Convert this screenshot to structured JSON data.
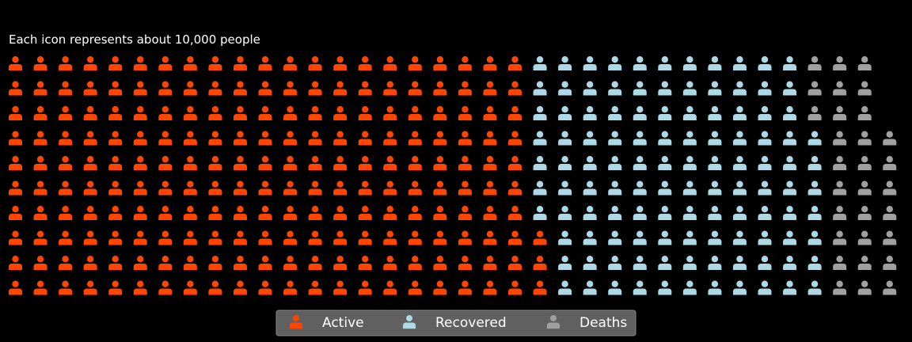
{
  "chart_data": {
    "type": "waffle",
    "title": "Each icon represents about 10,000 people",
    "unit_per_icon": 10000,
    "rows": 10,
    "columns": 36,
    "series": [
      {
        "name": "Active",
        "icons": 213,
        "color": "#ff4500"
      },
      {
        "name": "Recovered",
        "icons": 114,
        "color": "#add8e6"
      },
      {
        "name": "Deaths",
        "icons": 30,
        "color": "#a0a0a0"
      }
    ],
    "icon": "person-icon",
    "legend": {
      "position": "bottom-center",
      "background": "#606060"
    }
  },
  "colors": {
    "background": "#000000",
    "text": "#ffffff"
  }
}
